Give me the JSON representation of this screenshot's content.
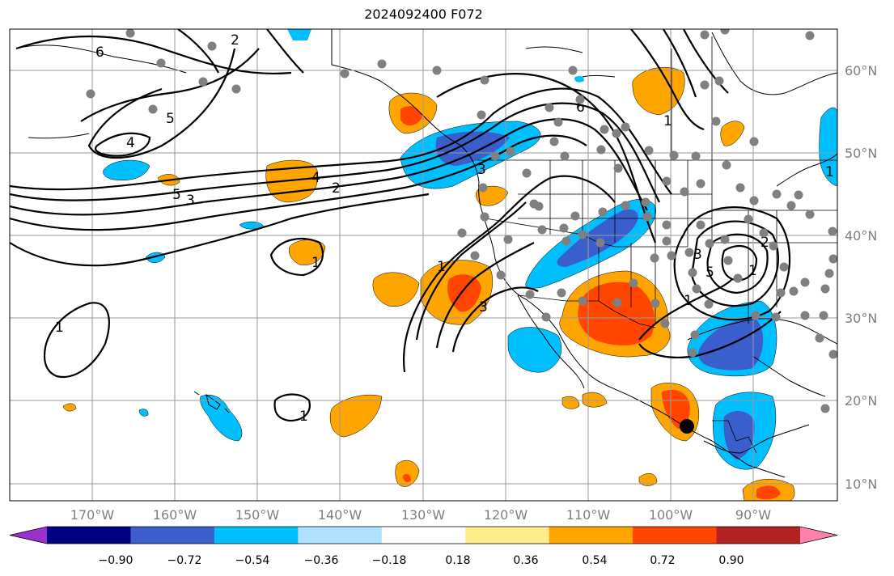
{
  "title": "2024092400 F072",
  "map": {
    "lat_labels": [
      "60°N",
      "50°N",
      "40°N",
      "30°N",
      "20°N",
      "10°N"
    ],
    "lon_labels": [
      "170°W",
      "160°W",
      "150°W",
      "140°W",
      "130°W",
      "120°W",
      "110°W",
      "100°W",
      "90°W"
    ],
    "contour_labels": [
      "6",
      "5",
      "4",
      "3",
      "2",
      "1",
      "5",
      "4",
      "3",
      "2",
      "1",
      "6",
      "1",
      "1",
      "3",
      "1",
      "1",
      "3",
      "5",
      "2",
      "1",
      "1"
    ],
    "marker_color": "#808080",
    "storm_marker_color": "#000000"
  },
  "colorbar": {
    "colors": [
      "#9932cc",
      "#000080",
      "#3a5fcd",
      "#00bfff",
      "#b0e2ff",
      "#ffffff",
      "#ffec8b",
      "#ffa500",
      "#ff4500",
      "#b22222",
      "#ff82ab"
    ],
    "tick_labels": [
      "−0.90",
      "−0.72",
      "−0.54",
      "−0.36",
      "−0.18",
      "0.18",
      "0.36",
      "0.54",
      "0.72",
      "0.90"
    ]
  }
}
